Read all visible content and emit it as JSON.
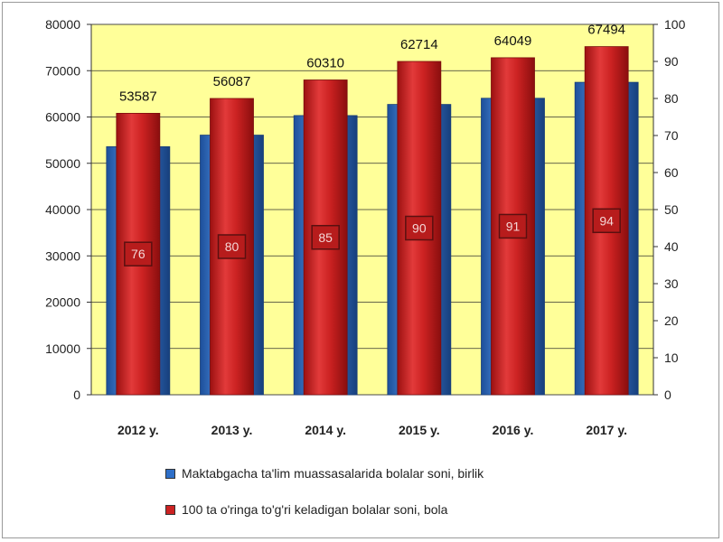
{
  "chart_data": {
    "type": "bar",
    "categories": [
      "2012 y.",
      "2013 y.",
      "2014 y.",
      "2015 y.",
      "2016 y.",
      "2017 y."
    ],
    "series": [
      {
        "name": "Maktabgacha ta'lim muassasalarida bolalar soni, birlik",
        "axis": "left",
        "values": [
          53587,
          56087,
          60310,
          62714,
          64049,
          67494
        ],
        "labels": [
          "53587",
          "56087",
          "60310",
          "62714",
          "64049",
          "67494"
        ],
        "color": "#2e6fc8"
      },
      {
        "name": "100 ta o'ringa to'g'ri keladigan bolalar soni, bola",
        "axis": "right",
        "values": [
          76,
          80,
          85,
          90,
          91,
          94
        ],
        "labels": [
          "76",
          "80",
          "85",
          "90",
          "91",
          "94"
        ],
        "color": "#cc2222"
      }
    ],
    "left_axis": {
      "min": 0,
      "max": 80000,
      "step": 10000,
      "ticks": [
        "0",
        "10000",
        "20000",
        "30000",
        "40000",
        "50000",
        "60000",
        "70000",
        "80000"
      ]
    },
    "right_axis": {
      "min": 0,
      "max": 100,
      "step": 10,
      "ticks": [
        "0",
        "10",
        "20",
        "30",
        "40",
        "50",
        "60",
        "70",
        "80",
        "90",
        "100"
      ]
    },
    "plot_background": "#ffff99",
    "grid": true,
    "legend_position": "bottom"
  }
}
